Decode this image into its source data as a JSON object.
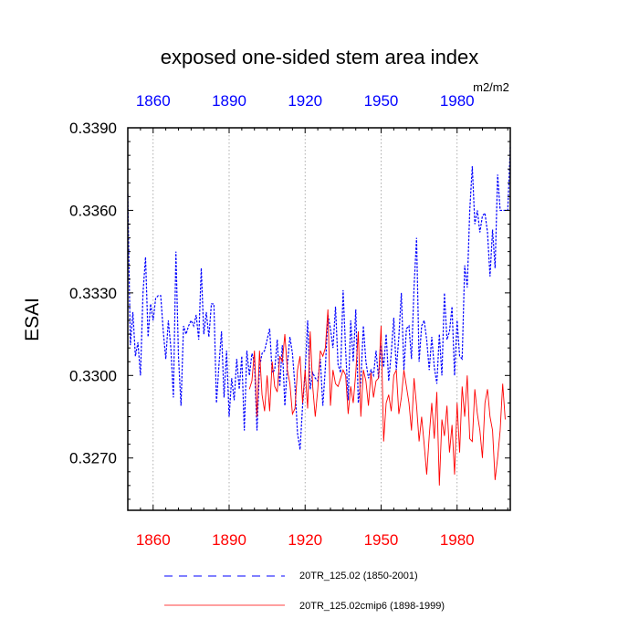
{
  "chart_data": {
    "type": "line",
    "title": "exposed one-sided stem area index",
    "ylabel": "ESAI",
    "units": "m2/m2",
    "xlim": [
      1850,
      2001
    ],
    "ylim": [
      0.3251,
      0.339
    ],
    "yticks": [
      0.327,
      0.33,
      0.333,
      0.336,
      0.339
    ],
    "ytick_labels": [
      "0.3270",
      "0.3300",
      "0.3330",
      "0.3360",
      "0.3390"
    ],
    "xticks": [
      1860,
      1890,
      1920,
      1950,
      1980
    ],
    "xtick_labels": [
      "1860",
      "1890",
      "1920",
      "1950",
      "1980"
    ],
    "grid": "vertical-dotted",
    "series": [
      {
        "name": "20TR_125.02 (1850-2001)",
        "color": "#0000ff",
        "style": "dashed",
        "x_start": 1850,
        "values": [
          0.3366,
          0.3311,
          0.3323,
          0.3307,
          0.3312,
          0.33,
          0.333,
          0.3343,
          0.3314,
          0.3326,
          0.332,
          0.3328,
          0.3329,
          0.3329,
          0.3316,
          0.3306,
          0.332,
          0.331,
          0.3292,
          0.3345,
          0.3307,
          0.3289,
          0.3318,
          0.3315,
          0.3318,
          0.332,
          0.3318,
          0.3322,
          0.3313,
          0.3339,
          0.3315,
          0.3323,
          0.3314,
          0.3326,
          0.3326,
          0.329,
          0.3304,
          0.3316,
          0.3292,
          0.3309,
          0.3285,
          0.3299,
          0.3291,
          0.3306,
          0.3295,
          0.3307,
          0.328,
          0.3309,
          0.33,
          0.3308,
          0.3305,
          0.328,
          0.3303,
          0.3308,
          0.3309,
          0.3313,
          0.3317,
          0.3301,
          0.3302,
          0.3313,
          0.3296,
          0.3311,
          0.3289,
          0.3304,
          0.3314,
          0.3308,
          0.3296,
          0.3279,
          0.3273,
          0.3289,
          0.3301,
          0.332,
          0.3295,
          0.3301,
          0.3299,
          0.3298,
          0.3306,
          0.3289,
          0.3303,
          0.3322,
          0.3317,
          0.331,
          0.3325,
          0.3304,
          0.3301,
          0.3331,
          0.3309,
          0.3291,
          0.332,
          0.3305,
          0.3324,
          0.329,
          0.3298,
          0.3318,
          0.3305,
          0.3299,
          0.3302,
          0.33,
          0.3309,
          0.3299,
          0.3311,
          0.3303,
          0.3315,
          0.3298,
          0.3308,
          0.3321,
          0.3302,
          0.3314,
          0.333,
          0.3302,
          0.3317,
          0.3318,
          0.3306,
          0.3332,
          0.335,
          0.3305,
          0.3318,
          0.332,
          0.3313,
          0.3302,
          0.3314,
          0.3303,
          0.3297,
          0.3315,
          0.33,
          0.333,
          0.3313,
          0.3316,
          0.3325,
          0.33,
          0.332,
          0.3307,
          0.3306,
          0.334,
          0.3332,
          0.336,
          0.3376,
          0.3355,
          0.336,
          0.3352,
          0.3358,
          0.3359,
          0.3352,
          0.3336,
          0.3353,
          0.3339,
          0.3373,
          0.336,
          0.336,
          0.336,
          0.336,
          0.3383
        ]
      },
      {
        "name": "20TR_125.02cmip6 (1898-1999)",
        "color": "#ff0000",
        "style": "solid",
        "x_start": 1898,
        "values": [
          0.3295,
          0.3298,
          0.3309,
          0.3285,
          0.3309,
          0.3293,
          0.3287,
          0.33,
          0.3287,
          0.3305,
          0.3296,
          0.3294,
          0.3307,
          0.3305,
          0.3315,
          0.3302,
          0.3297,
          0.3286,
          0.3288,
          0.3302,
          0.3307,
          0.329,
          0.3302,
          0.3288,
          0.3316,
          0.3296,
          0.3285,
          0.3295,
          0.3309,
          0.3307,
          0.331,
          0.3324,
          0.3289,
          0.3302,
          0.3297,
          0.3296,
          0.3299,
          0.3302,
          0.33,
          0.3286,
          0.3296,
          0.329,
          0.3301,
          0.3316,
          0.3285,
          0.3302,
          0.3298,
          0.3289,
          0.3301,
          0.3292,
          0.3298,
          0.3299,
          0.3318,
          0.3276,
          0.329,
          0.3293,
          0.3287,
          0.33,
          0.3302,
          0.3286,
          0.3292,
          0.3302,
          0.3296,
          0.329,
          0.328,
          0.3299,
          0.3289,
          0.3276,
          0.3285,
          0.3275,
          0.3264,
          0.3278,
          0.329,
          0.3277,
          0.3294,
          0.326,
          0.3284,
          0.3278,
          0.3289,
          0.3272,
          0.3282,
          0.3264,
          0.329,
          0.3272,
          0.3296,
          0.3285,
          0.33,
          0.3277,
          0.3276,
          0.3295,
          0.3286,
          0.328,
          0.327,
          0.329,
          0.3295,
          0.3285,
          0.328,
          0.3262,
          0.327,
          0.328,
          0.3297,
          0.3284
        ]
      }
    ],
    "legend_position": "bottom"
  }
}
